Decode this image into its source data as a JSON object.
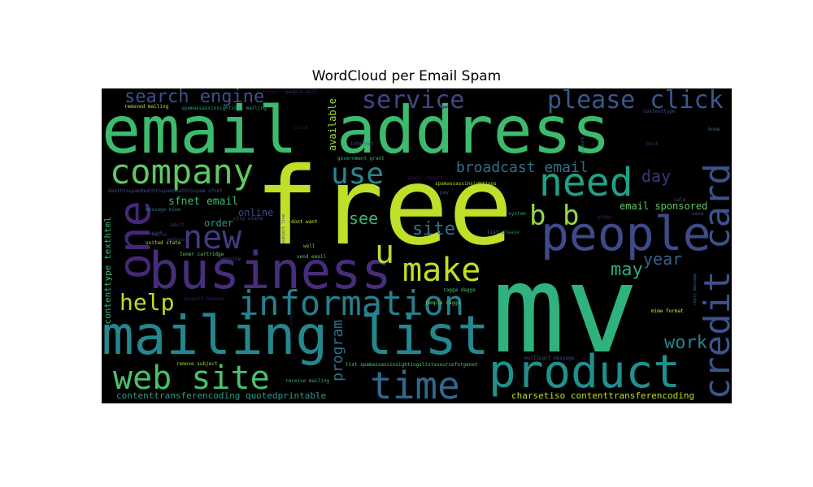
{
  "title": "WordCloud per Email Spam",
  "words": [
    {
      "text": "mv",
      "color": "#2fb27d"
    },
    {
      "text": "free",
      "color": "#bfe029"
    },
    {
      "text": "email address",
      "color": "#3cba6e"
    },
    {
      "text": "mailing list",
      "color": "#24878e"
    },
    {
      "text": "business",
      "color": "#472d7b"
    },
    {
      "text": "people",
      "color": "#3e4a89"
    },
    {
      "text": "product",
      "color": "#20908c"
    },
    {
      "text": "information",
      "color": "#277f8e"
    },
    {
      "text": "company",
      "color": "#5ec962"
    },
    {
      "text": "web site",
      "color": "#4ac16d"
    },
    {
      "text": "one",
      "color": "#482677"
    },
    {
      "text": "credit card",
      "color": "#3b528b"
    },
    {
      "text": "time",
      "color": "#31688e"
    },
    {
      "text": "need",
      "color": "#1fa187"
    },
    {
      "text": "make",
      "color": "#c2df23"
    },
    {
      "text": "new",
      "color": "#443983"
    },
    {
      "text": "please click",
      "color": "#38598c"
    },
    {
      "text": "service",
      "color": "#3f4788"
    },
    {
      "text": "use",
      "color": "#23898e"
    },
    {
      "text": "search engine",
      "color": "#3b528b"
    },
    {
      "text": "u",
      "color": "#b5de2b"
    },
    {
      "text": "b b",
      "color": "#95d840"
    },
    {
      "text": "help",
      "color": "#b8de29"
    },
    {
      "text": "site",
      "color": "#2a788e"
    },
    {
      "text": "broadcast email",
      "color": "#2c728e"
    },
    {
      "text": "day",
      "color": "#472f7d"
    },
    {
      "text": "year",
      "color": "#33638d"
    },
    {
      "text": "may",
      "color": "#29af7f"
    },
    {
      "text": "work",
      "color": "#26828e"
    },
    {
      "text": "see",
      "color": "#35b779"
    },
    {
      "text": "program",
      "color": "#2d718e"
    },
    {
      "text": "sfnet email",
      "color": "#3dbc74"
    },
    {
      "text": "email sponsored",
      "color": "#5ec962"
    },
    {
      "text": "order",
      "color": "#1f988b"
    },
    {
      "text": "online",
      "color": "#414487"
    },
    {
      "text": "available",
      "color": "#a0da39"
    },
    {
      "text": "contenttype texthtml",
      "color": "#35b779"
    },
    {
      "text": "contenttransferencoding quotedprintable",
      "color": "#2a9c89"
    },
    {
      "text": "charsetiso contenttransferencoding",
      "color": "#bddf26"
    },
    {
      "text": "removed mailing",
      "color": "#c8e020"
    },
    {
      "text": "spamassassinsightings mailing",
      "color": "#23a983"
    },
    {
      "text": "deathtospamdeathtospamdeathtospam sfnet",
      "color": "#3c4f8a"
    },
    {
      "text": "spamassassinsightings",
      "color": "#a8db34"
    },
    {
      "text": "dont want",
      "color": "#d8e219"
    },
    {
      "text": "send email",
      "color": "#52c569"
    },
    {
      "text": "well",
      "color": "#7ad151"
    },
    {
      "text": "toner cartridge",
      "color": "#6ccd5a"
    },
    {
      "text": "united state",
      "color": "#b0dd2f"
    },
    {
      "text": "list please",
      "color": "#2d708e"
    },
    {
      "text": "mime format",
      "color": "#e5e419"
    },
    {
      "text": "reply message",
      "color": "#2e6e8e"
    },
    {
      "text": "multipart message",
      "color": "#3a538b"
    },
    {
      "text": "list spamassassinsightingslistssourceforgenet",
      "color": "#50c46a"
    },
    {
      "text": "receive mailing",
      "color": "#2fb47c"
    },
    {
      "text": "remove subject",
      "color": "#a2da37"
    },
    {
      "text": "ragga dagga",
      "color": "#4ac16d"
    },
    {
      "text": "internet",
      "color": "#38598c"
    },
    {
      "text": "government grant",
      "color": "#3bbb75"
    },
    {
      "text": "message mime",
      "color": "#2f6c8e"
    },
    {
      "text": "city state",
      "color": "#3f4889"
    },
    {
      "text": "website",
      "color": "#3e4989"
    },
    {
      "text": "account",
      "color": "#2b748e"
    },
    {
      "text": "system",
      "color": "#1f9e89"
    },
    {
      "text": "pay",
      "color": "#3c4f8a"
    },
    {
      "text": "sale",
      "color": "#38588c"
    },
    {
      "text": "temple ragga",
      "color": "#6ece58"
    },
    {
      "text": "seventh heaven",
      "color": "#48186a"
    },
    {
      "text": "fill form",
      "color": "#471365"
    },
    {
      "text": "subject line",
      "color": "#46327e"
    },
    {
      "text": "offer",
      "color": "#482071"
    },
    {
      "text": "email report",
      "color": "#460b5e"
    },
    {
      "text": "adult",
      "color": "#45337d"
    },
    {
      "text": "want",
      "color": "#453882"
    },
    {
      "text": "click",
      "color": "#471063"
    },
    {
      "text": "money",
      "color": "#440154"
    },
    {
      "text": "best",
      "color": "#482878"
    },
    {
      "text": "contenttype",
      "color": "#3d4e8a"
    },
    {
      "text": "know",
      "color": "#2b758e"
    },
    {
      "text": "hello",
      "color": "#404688"
    },
    {
      "text": "address",
      "color": "#4e2d7d"
    },
    {
      "text": "people will",
      "color": "#482374"
    },
    {
      "text": "save",
      "color": "#3b518b"
    }
  ]
}
